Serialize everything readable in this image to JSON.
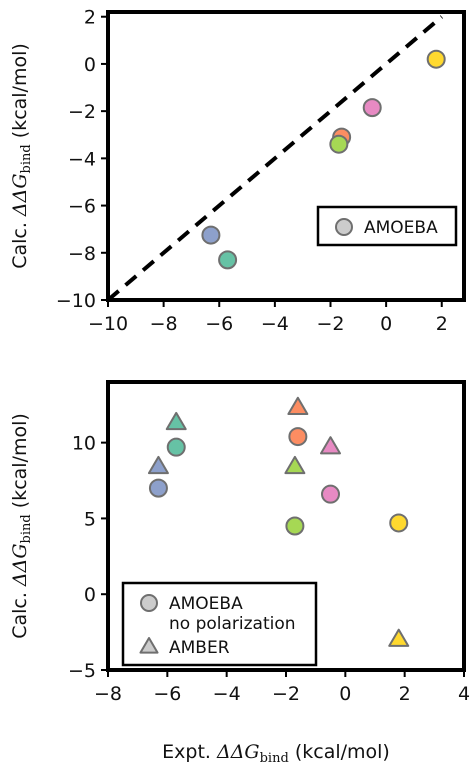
{
  "chart_data": [
    {
      "type": "scatter",
      "title": "",
      "xlabel": "",
      "ylabel": {
        "prefix": "Calc. ",
        "math": "ΔΔG",
        "sub": "bind",
        "suffix": " (kcal/mol)"
      },
      "xlim": [
        -10,
        2.8
      ],
      "ylim": [
        -10,
        2.2
      ],
      "xticks": [
        -10,
        -8,
        -6,
        -4,
        -2,
        0,
        2
      ],
      "yticks": [
        -10,
        -8,
        -6,
        -4,
        -2,
        0,
        2
      ],
      "grid": false,
      "legend_position": "lower-right",
      "reference_line": {
        "style": "dashed",
        "from": [
          -10,
          -10
        ],
        "to": [
          2,
          2
        ]
      },
      "series": [
        {
          "name": "AMOEBA",
          "marker": "circle",
          "legend_color": "#cccccc",
          "points": [
            {
              "x": 1.8,
              "y": 0.2,
              "color": "#ffd92f"
            },
            {
              "x": -0.5,
              "y": -1.85,
              "color": "#e78ac3"
            },
            {
              "x": -1.6,
              "y": -3.1,
              "color": "#fc8d62"
            },
            {
              "x": -1.7,
              "y": -3.4,
              "color": "#a6d854"
            },
            {
              "x": -6.3,
              "y": -7.25,
              "color": "#8da0cb"
            },
            {
              "x": -5.7,
              "y": -8.3,
              "color": "#66c2a5"
            }
          ]
        }
      ]
    },
    {
      "type": "scatter",
      "title": "",
      "xlabel": {
        "prefix": "Expt. ",
        "math": "ΔΔG",
        "sub": "bind",
        "suffix": " (kcal/mol)"
      },
      "ylabel": {
        "prefix": "Calc. ",
        "math": "ΔΔG",
        "sub": "bind",
        "suffix": " (kcal/mol)"
      },
      "xlim": [
        -8,
        4
      ],
      "ylim": [
        -5,
        14
      ],
      "xticks": [
        -8,
        -6,
        -4,
        -2,
        0,
        2,
        4
      ],
      "yticks": [
        -5,
        0,
        5,
        10
      ],
      "grid": false,
      "legend_position": "lower-left",
      "series": [
        {
          "name": "AMOEBA\nno polarization",
          "marker": "circle",
          "legend_color": "#cccccc",
          "points": [
            {
              "x": 1.8,
              "y": 4.7,
              "color": "#ffd92f"
            },
            {
              "x": -0.5,
              "y": 6.6,
              "color": "#e78ac3"
            },
            {
              "x": -1.6,
              "y": 10.4,
              "color": "#fc8d62"
            },
            {
              "x": -1.7,
              "y": 4.5,
              "color": "#a6d854"
            },
            {
              "x": -6.3,
              "y": 7.0,
              "color": "#8da0cb"
            },
            {
              "x": -5.7,
              "y": 9.7,
              "color": "#66c2a5"
            }
          ]
        },
        {
          "name": "AMBER",
          "marker": "triangle",
          "legend_color": "#cccccc",
          "points": [
            {
              "x": 1.8,
              "y": -3.0,
              "color": "#ffd92f"
            },
            {
              "x": -0.5,
              "y": 9.7,
              "color": "#e78ac3"
            },
            {
              "x": -1.6,
              "y": 12.3,
              "color": "#fc8d62"
            },
            {
              "x": -1.7,
              "y": 8.4,
              "color": "#a6d854"
            },
            {
              "x": -6.3,
              "y": 8.4,
              "color": "#8da0cb"
            },
            {
              "x": -5.7,
              "y": 11.3,
              "color": "#66c2a5"
            }
          ]
        }
      ]
    }
  ]
}
